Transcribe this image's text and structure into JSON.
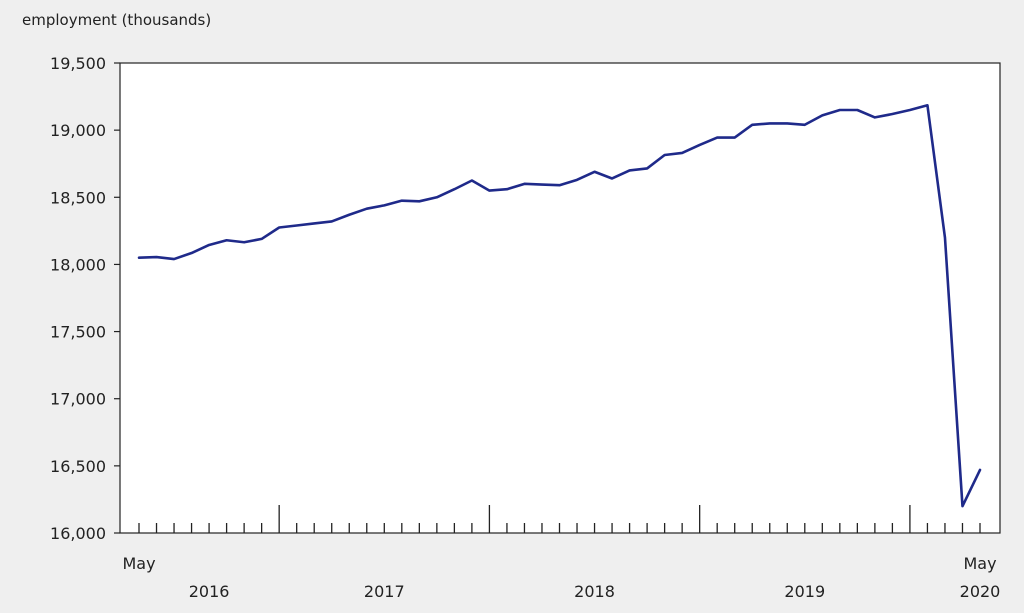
{
  "chart_data": {
    "type": "line",
    "ylabel": "employment (thousands)",
    "ylim": [
      16000,
      19500
    ],
    "yticks": [
      16000,
      16500,
      17000,
      17500,
      18000,
      18500,
      19000,
      19500
    ],
    "ytick_labels": [
      "16,000",
      "16,500",
      "17,000",
      "17,500",
      "18,000",
      "18,500",
      "19,000",
      "19,500"
    ],
    "x_start": "2016-05",
    "x_end": "2020-05",
    "x_edge_labels": {
      "start": "May",
      "end": "May"
    },
    "year_labels": [
      "2016",
      "2017",
      "2018",
      "2019",
      "2020"
    ],
    "grid": false,
    "line_color": "#1f2a8a",
    "series": [
      {
        "values": [
          18050,
          18055,
          18040,
          18085,
          18145,
          18180,
          18165,
          18190,
          18275,
          18290,
          18305,
          18320,
          18370,
          18415,
          18440,
          18475,
          18470,
          18500,
          18560,
          18625,
          18550,
          18560,
          18600,
          18595,
          18590,
          18630,
          18690,
          18640,
          18700,
          18715,
          18815,
          18830,
          18890,
          18945,
          18945,
          19040,
          19050,
          19050,
          19040,
          19110,
          19150,
          19150,
          19095,
          19120,
          19150,
          19185,
          18200,
          16200,
          16470
        ]
      }
    ]
  }
}
